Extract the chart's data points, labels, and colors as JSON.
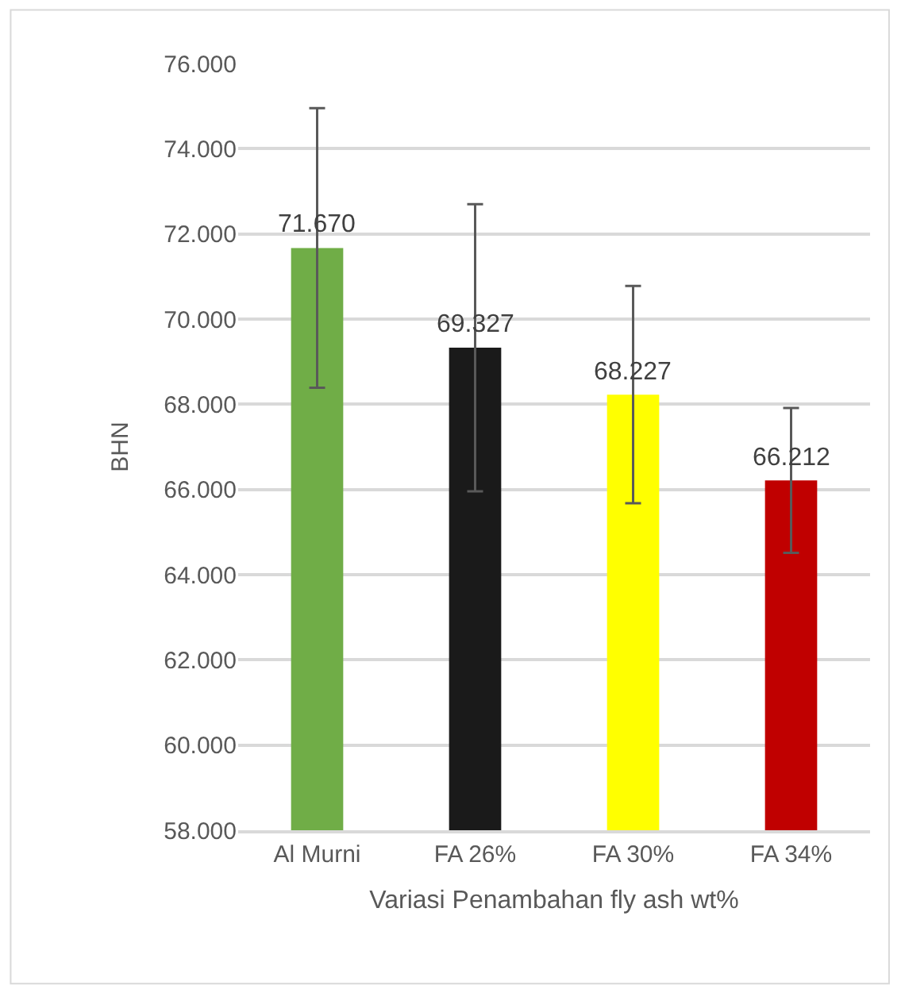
{
  "chart_data": {
    "type": "bar",
    "categories": [
      "Al Murni",
      "FA 26%",
      "FA 30%",
      "FA 34%"
    ],
    "values": [
      71.67,
      69.327,
      68.227,
      66.212
    ],
    "colors": [
      "#70ad47",
      "#1a1a1a",
      "#ffff00",
      "#c00000"
    ],
    "errors": [
      3.28,
      3.37,
      2.55,
      1.7
    ],
    "value_labels": [
      "71.670",
      "69.327",
      "68.227",
      "66.212"
    ],
    "xlabel": "Variasi Penambahan fly ash wt%",
    "ylabel": "BHN",
    "ylim": [
      58,
      76
    ],
    "yticks": [
      {
        "value": 58,
        "label": "58.000"
      },
      {
        "value": 60,
        "label": "60.000"
      },
      {
        "value": 62,
        "label": "62.000"
      },
      {
        "value": 64,
        "label": "64.000"
      },
      {
        "value": 66,
        "label": "66.000"
      },
      {
        "value": 68,
        "label": "68.000"
      },
      {
        "value": 70,
        "label": "70.000"
      },
      {
        "value": 72,
        "label": "72.000"
      },
      {
        "value": 74,
        "label": "74.000"
      },
      {
        "value": 76,
        "label": "76.000"
      }
    ],
    "grid": "y"
  }
}
